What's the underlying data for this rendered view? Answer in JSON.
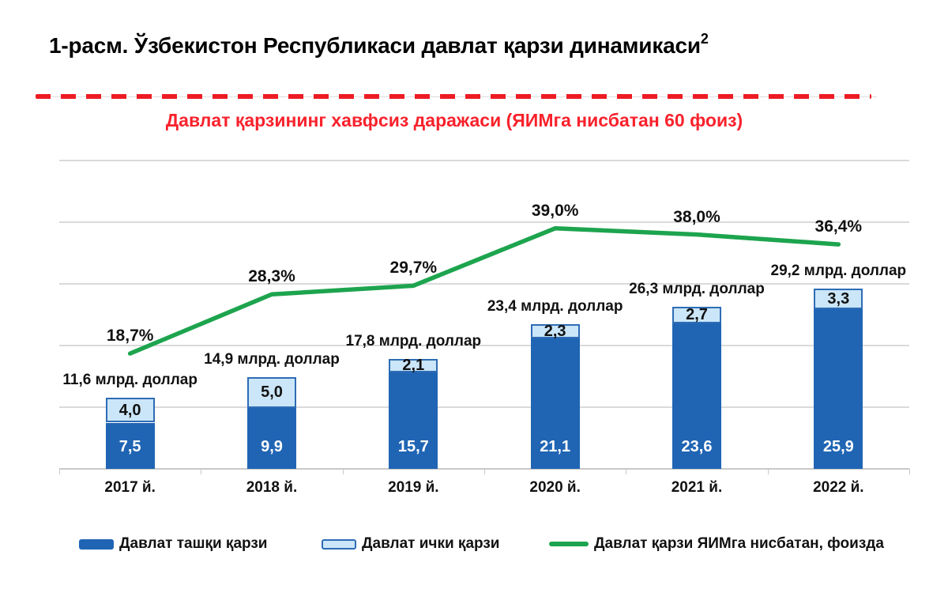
{
  "title": {
    "main": "1-расм. Ўзбекистон Республикаси давлат қарзи динамикаси",
    "superscript": "2"
  },
  "safe_level_note": "Давлат қарзининг хавфсиз даражаси (ЯИМга нисбатан 60 фоиз)",
  "legend": {
    "items": [
      {
        "label": "Давлат ташқи қарзи",
        "swatch": "external-bar"
      },
      {
        "label": "Давлат ички қарзи",
        "swatch": "internal-bar"
      },
      {
        "label": "Давлат қарзи ЯИМга нисбатан, фоизда",
        "swatch": "gdp-line"
      }
    ]
  },
  "colors": {
    "external_bar": "#2065b4",
    "internal_bar_fill": "#cbe6f8",
    "internal_bar_border": "#2e6cb5",
    "gdp_line": "#1da44e",
    "safe_level_red": "#ed1c24",
    "safe_note_red": "#f8222c",
    "grid": "#dadada",
    "axis": "#c9c9c9",
    "bar_text_light": "#ffffff",
    "bar_text_dark": "#111111"
  },
  "chart_data": {
    "type": "bar",
    "subtype": "stacked-bars-with-line",
    "categories": [
      "2017 й.",
      "2018 й.",
      "2019 й.",
      "2020 й.",
      "2021 й.",
      "2022 й."
    ],
    "series": [
      {
        "name": "Давлат ташқи қарзи",
        "type": "bar",
        "values": [
          7.5,
          9.9,
          15.7,
          21.1,
          23.6,
          25.9
        ],
        "labels": [
          "7,5",
          "9,9",
          "15,7",
          "21,1",
          "23,6",
          "25,9"
        ]
      },
      {
        "name": "Давлат ички қарзи",
        "type": "bar",
        "values": [
          4.0,
          5.0,
          2.1,
          2.3,
          2.7,
          3.3
        ],
        "labels": [
          "4,0",
          "5,0",
          "2,1",
          "2,3",
          "2,7",
          "3,3"
        ]
      },
      {
        "name": "Давлат қарзи ЯИМга нисбатан, фоизда",
        "type": "line",
        "values": [
          18.7,
          28.3,
          29.7,
          39.0,
          38.0,
          36.4
        ],
        "labels": [
          "18,7%",
          "28,3%",
          "29,7%",
          "39,0%",
          "38,0%",
          "36,4%"
        ]
      }
    ],
    "totals": {
      "values": [
        11.6,
        14.9,
        17.8,
        23.4,
        26.3,
        29.2
      ],
      "labels": [
        "11,6 млрд. доллар",
        "14,9 млрд. доллар",
        "17,8 млрд. доллар",
        "23,4 млрд. доллар",
        "26,3 млрд. доллар",
        "29,2 млрд. доллар"
      ]
    },
    "safe_level": {
      "value": 60,
      "label": "Давлат қарзининг хавфсиз даражаси (ЯИМга нисбатан 60 фоиз)"
    },
    "ylim": [
      0,
      60
    ],
    "grid_step": 10,
    "grid_max": 50,
    "grid": true,
    "y_axis_labels_visible": false,
    "legend_position": "bottom"
  }
}
